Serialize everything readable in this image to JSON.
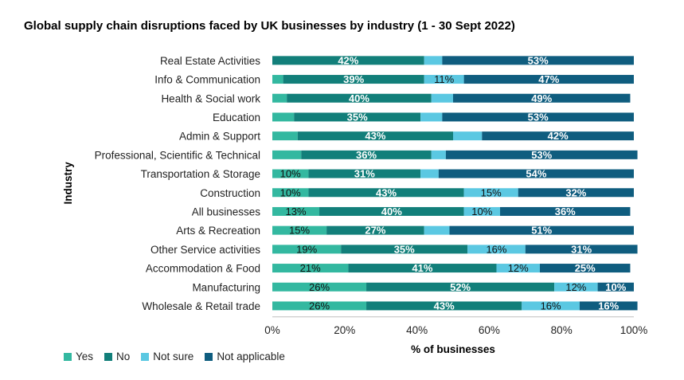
{
  "chart_data": {
    "type": "bar",
    "orientation": "horizontal",
    "stacked": "percent",
    "title": "Global supply chain disruptions faced by UK businesses by industry (1 - 30 Sept 2022)",
    "xlabel": "% of businesses",
    "ylabel": "Industry",
    "xlim": [
      0,
      100
    ],
    "xticks": [
      "0%",
      "20%",
      "40%",
      "60%",
      "80%",
      "100%"
    ],
    "grid": false,
    "legend_position": "bottom-left",
    "categories": [
      "Real Estate Activities",
      "Info & Communication",
      "Health & Social work",
      "Education",
      "Admin & Support",
      "Professional, Scientific & Technical",
      "Transportation & Storage",
      "Construction",
      "All businesses",
      "Arts & Recreation",
      "Other Service activities",
      "Accommodation & Food",
      "Manufacturing",
      "Wholesale & Retail trade"
    ],
    "series": [
      {
        "name": "Yes",
        "color": "#33b8a0",
        "values": [
          0,
          3,
          4,
          6,
          7,
          8,
          10,
          10,
          13,
          15,
          19,
          21,
          26,
          26
        ],
        "labels": [
          "",
          "",
          "",
          "",
          "",
          "",
          "10%",
          "10%",
          "13%",
          "15%",
          "19%",
          "21%",
          "26%",
          "26%"
        ]
      },
      {
        "name": "No",
        "color": "#127f7a",
        "values": [
          42,
          39,
          40,
          35,
          43,
          36,
          31,
          43,
          40,
          27,
          35,
          41,
          52,
          43
        ],
        "labels": [
          "42%",
          "39%",
          "40%",
          "35%",
          "43%",
          "36%",
          "31%",
          "43%",
          "40%",
          "27%",
          "35%",
          "41%",
          "52%",
          "43%"
        ]
      },
      {
        "name": "Not sure",
        "color": "#5bc8e2",
        "values": [
          5,
          11,
          6,
          6,
          8,
          4,
          5,
          15,
          10,
          7,
          16,
          12,
          12,
          16
        ],
        "labels": [
          "",
          "11%",
          "",
          "",
          "",
          "",
          "",
          "15%",
          "10%",
          "",
          "16%",
          "12%",
          "12%",
          "16%"
        ]
      },
      {
        "name": "Not applicable",
        "color": "#0f5d7f",
        "values": [
          53,
          47,
          49,
          53,
          42,
          53,
          54,
          32,
          36,
          51,
          31,
          25,
          10,
          16
        ],
        "labels": [
          "53%",
          "47%",
          "49%",
          "53%",
          "42%",
          "53%",
          "54%",
          "32%",
          "36%",
          "51%",
          "31%",
          "25%",
          "10%",
          "16%"
        ]
      }
    ]
  }
}
